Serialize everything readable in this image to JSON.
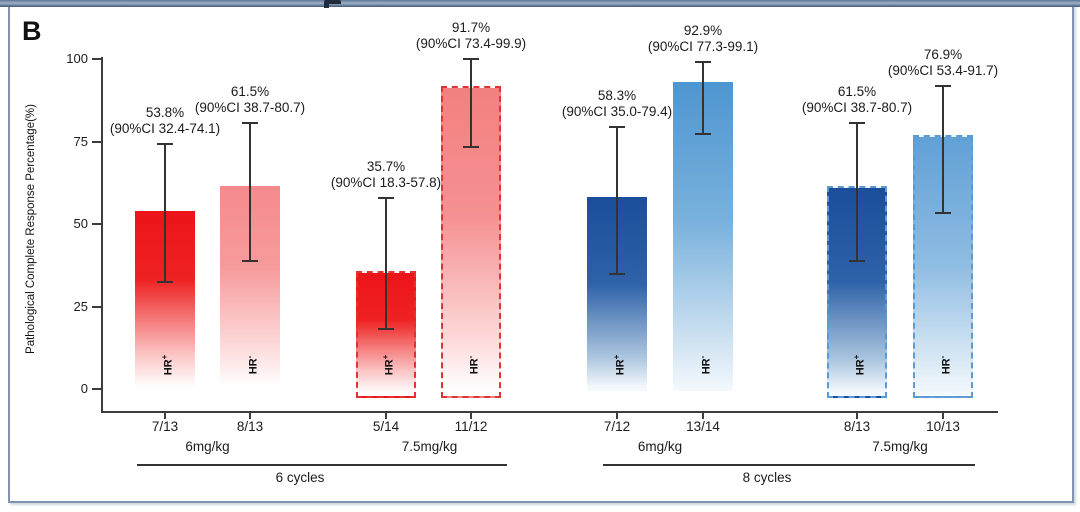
{
  "chart_data": {
    "type": "bar",
    "panel_label": "B",
    "title": "",
    "xlabel": "",
    "ylabel": "Pathological Complete Response Percentage(%)",
    "ylim": [
      0,
      100
    ],
    "yticks": [
      0,
      25,
      50,
      75,
      100
    ],
    "grid": false,
    "legend": false,
    "ci_level": "90%CI",
    "bars": [
      {
        "cycle_group": "6 cycles",
        "dose": "6mg/kg",
        "hr": "HR+",
        "value": 53.8,
        "ci_low": 32.4,
        "ci_high": 74.1,
        "fraction": "7/13",
        "value_label": "53.8%",
        "ci_label": "(90%CI 32.4-74.1)",
        "style": "red-solid",
        "dashed": false
      },
      {
        "cycle_group": "6 cycles",
        "dose": "6mg/kg",
        "hr": "HR-",
        "value": 61.5,
        "ci_low": 38.7,
        "ci_high": 80.7,
        "fraction": "8/13",
        "value_label": "61.5%",
        "ci_label": "(90%CI 38.7-80.7)",
        "style": "red-lighter",
        "dashed": false
      },
      {
        "cycle_group": "6 cycles",
        "dose": "7.5mg/kg",
        "hr": "HR+",
        "value": 35.7,
        "ci_low": 18.3,
        "ci_high": 57.8,
        "fraction": "5/14",
        "value_label": "35.7%",
        "ci_label": "(90%CI 18.3-57.8)",
        "style": "red-solid",
        "dashed": true
      },
      {
        "cycle_group": "6 cycles",
        "dose": "7.5mg/kg",
        "hr": "HR-",
        "value": 91.7,
        "ci_low": 73.4,
        "ci_high": 99.9,
        "fraction": "11/12",
        "value_label": "91.7%",
        "ci_label": "(90%CI 73.4-99.9)",
        "style": "red-salmon",
        "dashed": true
      },
      {
        "cycle_group": "8 cycles",
        "dose": "6mg/kg",
        "hr": "HR+",
        "value": 58.3,
        "ci_low": 35.0,
        "ci_high": 79.4,
        "fraction": "7/12",
        "value_label": "58.3%",
        "ci_label": "(90%CI 35.0-79.4)",
        "style": "blue-dark",
        "dashed": false
      },
      {
        "cycle_group": "8 cycles",
        "dose": "6mg/kg",
        "hr": "HR-",
        "value": 92.9,
        "ci_low": 77.3,
        "ci_high": 99.1,
        "fraction": "13/14",
        "value_label": "92.9%",
        "ci_label": "(90%CI 77.3-99.1)",
        "style": "blue-medium",
        "dashed": false
      },
      {
        "cycle_group": "8 cycles",
        "dose": "7.5mg/kg",
        "hr": "HR+",
        "value": 61.5,
        "ci_low": 38.7,
        "ci_high": 80.7,
        "fraction": "8/13",
        "value_label": "61.5%",
        "ci_label": "(90%CI 38.7-80.7)",
        "style": "blue-dark",
        "dashed": true
      },
      {
        "cycle_group": "8 cycles",
        "dose": "7.5mg/kg",
        "hr": "HR-",
        "value": 76.9,
        "ci_low": 53.4,
        "ci_high": 91.7,
        "fraction": "10/13",
        "value_label": "76.9%",
        "ci_label": "(90%CI 53.4-91.7)",
        "style": "blue-light",
        "dashed": true
      }
    ],
    "dose_groups": [
      {
        "label": "6mg/kg"
      },
      {
        "label": "7.5mg/kg"
      },
      {
        "label": "6mg/kg"
      },
      {
        "label": "7.5mg/kg"
      }
    ],
    "cycle_groups": [
      {
        "label": "6 cycles"
      },
      {
        "label": "8 cycles"
      }
    ],
    "colors": {
      "red_solid": "#EC1419",
      "red_lighter": "#F58A8C",
      "red_salmon": "#F38080",
      "red_dash_border": "#E23333",
      "blue_dark": "#1B4D9B",
      "blue_medium": "#4E96D1",
      "blue_light": "#61A0D6",
      "blue_dash_border": "#5B9BD5",
      "axis": "#3D3D3D",
      "error_bar": "#333333",
      "frame_border": "#8093AF",
      "text": "#1B1B1B"
    }
  }
}
